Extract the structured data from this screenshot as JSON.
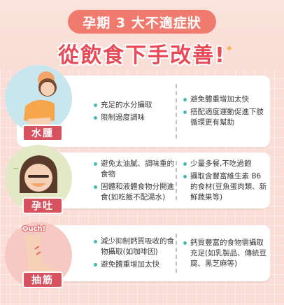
{
  "header": {
    "title": "孕期 3 大不適症狀",
    "headline": "從飲食下手改善!"
  },
  "cards": [
    {
      "label": "水腫",
      "col_a": [
        "充足的水分攝取",
        "限制過度調味"
      ],
      "col_b": [
        "避免體重增加太快",
        "搭配適度運動促進下肢循環更有幫助"
      ]
    },
    {
      "label": "孕吐",
      "col_a": [
        "避免太油膩、調味重的食物",
        "固體和液體食物分開進食(如吃飯不配湯水)"
      ],
      "col_b": [
        "少量多餐,不吃過飽",
        "攝取含豐富維生素 B6 的食材(豆魚蛋肉類、新鮮蔬果等)"
      ]
    },
    {
      "label": "抽筋",
      "ouch": "Ouch!",
      "col_a": [
        "減少抑制鈣質吸收的食物攝取(如咖啡因)",
        "避免體重增加太快"
      ],
      "col_b": [
        "鈣質豐富的食物需攝取充足(如乳製品、傳統豆腐、黑芝麻等)"
      ]
    }
  ],
  "colors": {
    "background": "#f9ddd6",
    "accent": "#e84b57",
    "pill": "#f07a6e",
    "label": "#d7525f",
    "bullet": "#4bb7b5"
  }
}
